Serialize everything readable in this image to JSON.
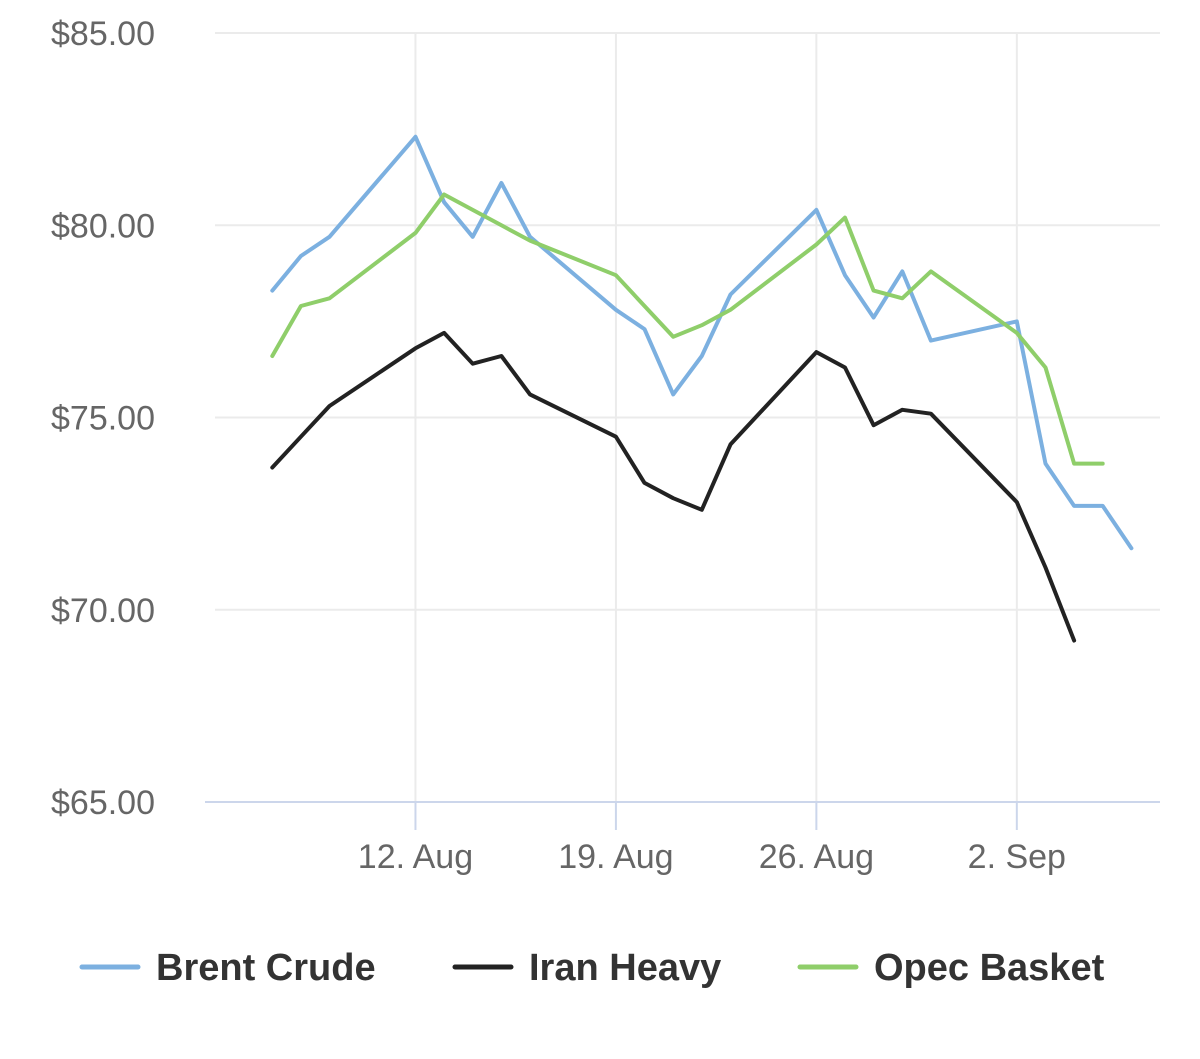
{
  "chart_data": {
    "type": "line",
    "title": "",
    "xlabel": "",
    "ylabel": "",
    "ylim": [
      65,
      85
    ],
    "yticks": [
      "$85.00",
      "$80.00",
      "$75.00",
      "$70.00",
      "$65.00"
    ],
    "ytick_values": [
      85,
      80,
      75,
      70,
      65
    ],
    "xlim": [
      "2019-08-05",
      "2019-09-07"
    ],
    "xticks": [
      "12. Aug",
      "19. Aug",
      "26. Aug",
      "2. Sep"
    ],
    "xtick_dates": [
      "2019-08-12",
      "2019-08-19",
      "2019-08-26",
      "2019-09-02"
    ],
    "grid": true,
    "legend_position": "bottom",
    "colors": {
      "Brent Crude": "#7cb0e0",
      "Iran Heavy": "#222222",
      "Opec Basket": "#8fce6a",
      "grid": "#ebebeb",
      "axis": "#ccd6eb"
    },
    "series": [
      {
        "name": "Brent Crude",
        "color": "#7cb0e0",
        "points": [
          [
            "2019-08-07",
            78.3
          ],
          [
            "2019-08-08",
            79.2
          ],
          [
            "2019-08-09",
            79.7
          ],
          [
            "2019-08-12",
            82.3
          ],
          [
            "2019-08-13",
            80.6
          ],
          [
            "2019-08-14",
            79.7
          ],
          [
            "2019-08-15",
            81.1
          ],
          [
            "2019-08-16",
            79.7
          ],
          [
            "2019-08-19",
            77.8
          ],
          [
            "2019-08-20",
            77.3
          ],
          [
            "2019-08-21",
            75.6
          ],
          [
            "2019-08-22",
            76.6
          ],
          [
            "2019-08-23",
            78.2
          ],
          [
            "2019-08-26",
            80.4
          ],
          [
            "2019-08-27",
            78.7
          ],
          [
            "2019-08-28",
            77.6
          ],
          [
            "2019-08-29",
            78.8
          ],
          [
            "2019-08-30",
            77.0
          ],
          [
            "2019-09-02",
            77.5
          ],
          [
            "2019-09-03",
            73.8
          ],
          [
            "2019-09-04",
            72.7
          ],
          [
            "2019-09-05",
            72.7
          ],
          [
            "2019-09-06",
            71.6
          ]
        ]
      },
      {
        "name": "Iran Heavy",
        "color": "#222222",
        "points": [
          [
            "2019-08-07",
            73.7
          ],
          [
            "2019-08-08",
            74.5
          ],
          [
            "2019-08-09",
            75.3
          ],
          [
            "2019-08-12",
            76.8
          ],
          [
            "2019-08-13",
            77.2
          ],
          [
            "2019-08-14",
            76.4
          ],
          [
            "2019-08-15",
            76.6
          ],
          [
            "2019-08-16",
            75.6
          ],
          [
            "2019-08-19",
            74.5
          ],
          [
            "2019-08-20",
            73.3
          ],
          [
            "2019-08-21",
            72.9
          ],
          [
            "2019-08-22",
            72.6
          ],
          [
            "2019-08-23",
            74.3
          ],
          [
            "2019-08-26",
            76.7
          ],
          [
            "2019-08-27",
            76.3
          ],
          [
            "2019-08-28",
            74.8
          ],
          [
            "2019-08-29",
            75.2
          ],
          [
            "2019-08-30",
            75.1
          ],
          [
            "2019-09-02",
            72.8
          ],
          [
            "2019-09-03",
            71.1
          ],
          [
            "2019-09-04",
            69.2
          ]
        ]
      },
      {
        "name": "Opec Basket",
        "color": "#8fce6a",
        "points": [
          [
            "2019-08-07",
            76.6
          ],
          [
            "2019-08-08",
            77.9
          ],
          [
            "2019-08-09",
            78.1
          ],
          [
            "2019-08-12",
            79.8
          ],
          [
            "2019-08-13",
            80.8
          ],
          [
            "2019-08-14",
            80.4
          ],
          [
            "2019-08-15",
            80.0
          ],
          [
            "2019-08-16",
            79.6
          ],
          [
            "2019-08-19",
            78.7
          ],
          [
            "2019-08-20",
            77.9
          ],
          [
            "2019-08-21",
            77.1
          ],
          [
            "2019-08-22",
            77.4
          ],
          [
            "2019-08-23",
            77.8
          ],
          [
            "2019-08-26",
            79.5
          ],
          [
            "2019-08-27",
            80.2
          ],
          [
            "2019-08-28",
            78.3
          ],
          [
            "2019-08-29",
            78.1
          ],
          [
            "2019-08-30",
            78.8
          ],
          [
            "2019-09-02",
            77.2
          ],
          [
            "2019-09-03",
            76.3
          ],
          [
            "2019-09-04",
            73.8
          ],
          [
            "2019-09-05",
            73.8
          ]
        ]
      }
    ],
    "legend": [
      "Brent Crude",
      "Iran Heavy",
      "Opec Basket"
    ]
  }
}
